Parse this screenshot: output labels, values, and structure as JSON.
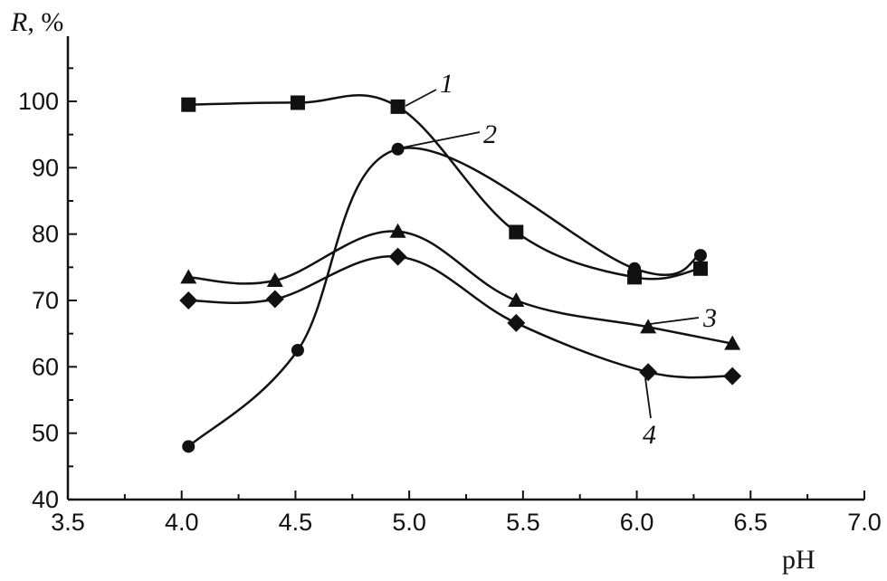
{
  "chart_data": {
    "type": "line",
    "xlabel": "pH",
    "ylabel_var": "R",
    "ylabel_unit": ", %",
    "xlim": [
      3.5,
      7.0
    ],
    "ylim": [
      40,
      100
    ],
    "xticks": [
      "3.5",
      "4.0",
      "4.5",
      "5.0",
      "5.5",
      "6.0",
      "6.5",
      "7.0"
    ],
    "yticks": [
      "40",
      "50",
      "60",
      "70",
      "80",
      "90",
      "100"
    ],
    "grid": false,
    "series": [
      {
        "name": "1",
        "marker": "square",
        "x": [
          4.03,
          4.51,
          4.95,
          5.47,
          5.99,
          6.28
        ],
        "y": [
          99.5,
          99.8,
          99.2,
          80.3,
          73.5,
          74.8
        ]
      },
      {
        "name": "2",
        "marker": "circle",
        "x": [
          4.03,
          4.51,
          4.95,
          5.99,
          6.28
        ],
        "y": [
          48.0,
          62.5,
          92.8,
          74.8,
          76.8
        ]
      },
      {
        "name": "3",
        "marker": "triangle",
        "x": [
          4.03,
          4.41,
          4.95,
          5.47,
          6.05,
          6.42
        ],
        "y": [
          73.5,
          73.0,
          80.4,
          70.0,
          66.0,
          63.5
        ]
      },
      {
        "name": "4",
        "marker": "diamond",
        "x": [
          4.03,
          4.41,
          4.95,
          5.47,
          6.05,
          6.42
        ],
        "y": [
          70.0,
          70.2,
          76.6,
          66.6,
          59.2,
          58.6
        ]
      }
    ]
  }
}
